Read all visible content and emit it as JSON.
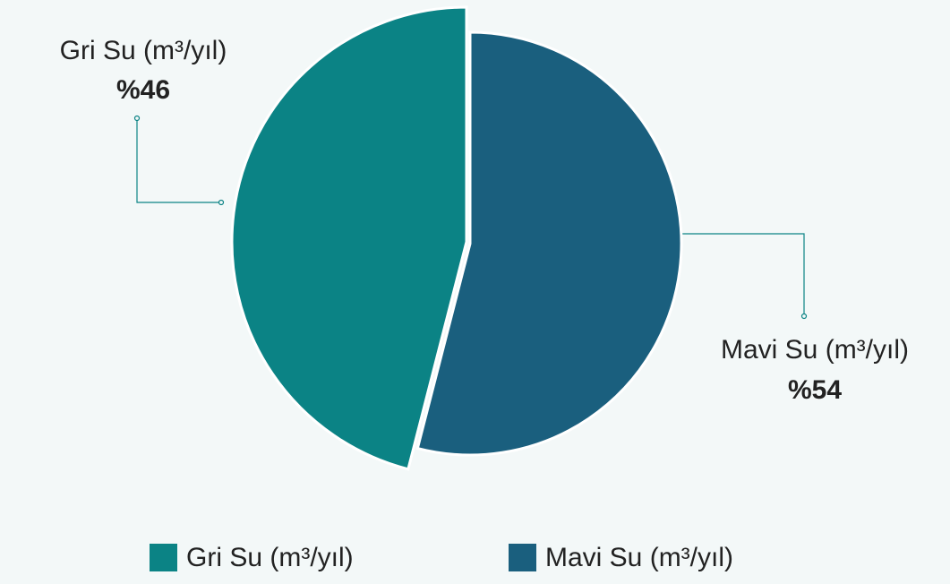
{
  "chart_data": {
    "type": "pie",
    "categories": [
      "Gri Su (m³/yıl)",
      "Mavi Su (m³/yıl)"
    ],
    "values": [
      46,
      54
    ],
    "value_labels": [
      "%46",
      "%54"
    ],
    "colors": [
      "#0b8385",
      "#1a5f7e"
    ],
    "legend": "bottom"
  }
}
